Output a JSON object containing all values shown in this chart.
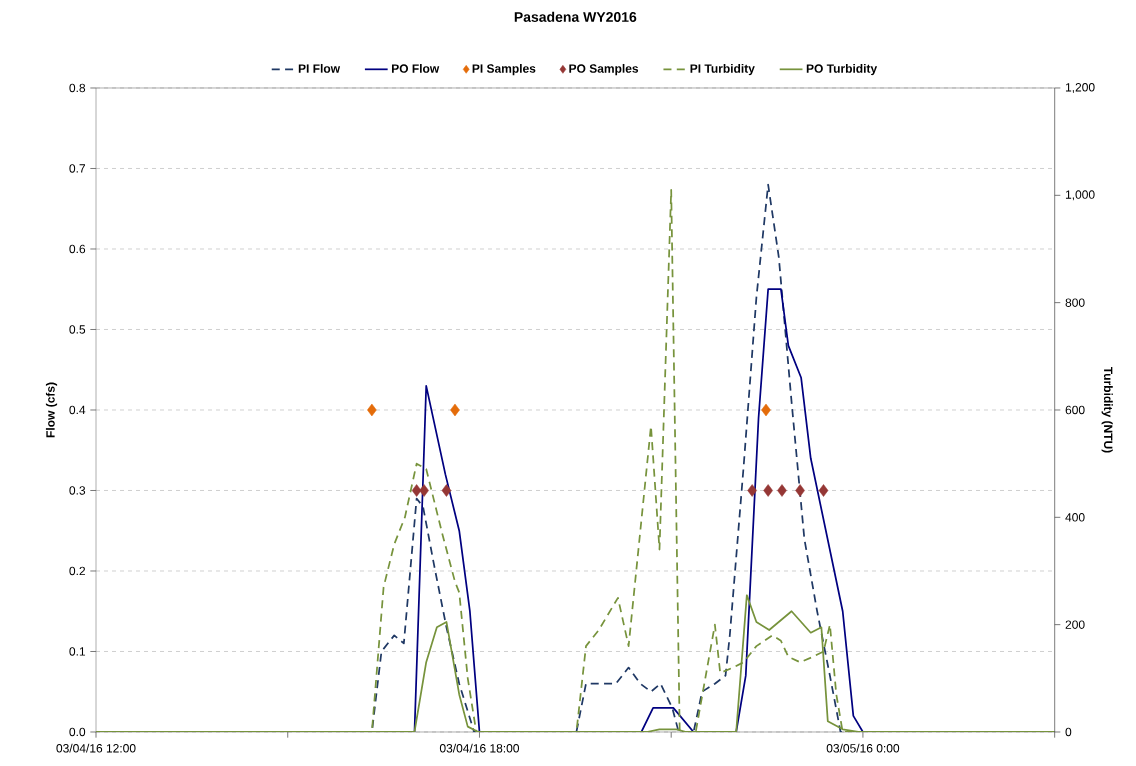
{
  "chart_data": {
    "type": "line",
    "title": "Pasadena WY2016",
    "ylabel": "Flow (cfs)",
    "y2label": "Turbidity (NTU)",
    "xlim": [
      "2016-03-04T12:00",
      "2016-03-05T03:00"
    ],
    "xticks": [
      {
        "value": "2016-03-04T12:00",
        "label": "03/04/16 12:00"
      },
      {
        "value": "2016-03-04T15:00",
        "label": null
      },
      {
        "value": "2016-03-04T18:00",
        "label": "03/04/16 18:00"
      },
      {
        "value": "2016-03-04T21:00",
        "label": null
      },
      {
        "value": "2016-03-05T00:00",
        "label": "03/05/16 0:00"
      },
      {
        "value": "2016-03-05T03:00",
        "label": null
      }
    ],
    "ylim": [
      0,
      0.8
    ],
    "yticks": [
      {
        "value": 0,
        "label": "0.0"
      },
      0.1,
      0.2,
      0.3,
      0.4,
      0.5,
      0.6,
      0.7,
      0.8
    ],
    "y2lim": [
      0,
      1200
    ],
    "y2ticks": [
      0,
      200,
      400,
      600,
      800,
      {
        "value": 1000,
        "label": "1,000"
      },
      {
        "value": 1200,
        "label": "1,200"
      }
    ],
    "grid": "y",
    "legend": "top",
    "series": [
      {
        "name": "PI Flow",
        "line_style": "dashed",
        "color": "#1f3864",
        "x": [
          "2016-03-04T12:00",
          "2016-03-04T16:19",
          "2016-03-04T16:28",
          "2016-03-04T16:40",
          "2016-03-04T16:49",
          "2016-03-04T17:01",
          "2016-03-04T17:07",
          "2016-03-04T17:17",
          "2016-03-04T17:29",
          "2016-03-04T17:41",
          "2016-03-04T17:55",
          "2016-03-04T19:31",
          "2016-03-04T19:40",
          "2016-03-04T19:58",
          "2016-03-04T20:08",
          "2016-03-04T20:20",
          "2016-03-04T20:31",
          "2016-03-04T20:41",
          "2016-03-04T20:50",
          "2016-03-04T21:01",
          "2016-03-04T21:07",
          "2016-03-04T21:21",
          "2016-03-04T21:29",
          "2016-03-04T21:41",
          "2016-03-04T21:51",
          "2016-03-04T21:55",
          "2016-03-04T22:08",
          "2016-03-04T22:20",
          "2016-03-04T22:31",
          "2016-03-04T22:41",
          "2016-03-04T22:53",
          "2016-03-04T23:05",
          "2016-03-04T23:17",
          "2016-03-04T23:29",
          "2016-03-04T23:39",
          "2016-03-05T03:00"
        ],
        "values": [
          0,
          0,
          0.1,
          0.12,
          0.11,
          0.29,
          0.28,
          0.21,
          0.13,
          0.06,
          0,
          0,
          0.06,
          0.06,
          0.06,
          0.08,
          0.06,
          0.05,
          0.06,
          0.03,
          0,
          0,
          0.05,
          0.06,
          0.07,
          0.12,
          0.33,
          0.54,
          0.68,
          0.59,
          0.41,
          0.24,
          0.15,
          0.07,
          0,
          0
        ]
      },
      {
        "name": "PO Flow",
        "line_style": "solid",
        "color": "#000080",
        "x": [
          "2016-03-04T12:00",
          "2016-03-04T16:59",
          "2016-03-04T17:10",
          "2016-03-04T17:28",
          "2016-03-04T17:41",
          "2016-03-04T17:51",
          "2016-03-04T18:00",
          "2016-03-04T20:32",
          "2016-03-04T20:43",
          "2016-03-04T20:53",
          "2016-03-04T21:02",
          "2016-03-04T21:21",
          "2016-03-04T22:01",
          "2016-03-04T22:10",
          "2016-03-04T22:22",
          "2016-03-04T22:31",
          "2016-03-04T22:43",
          "2016-03-04T22:50",
          "2016-03-04T23:02",
          "2016-03-04T23:11",
          "2016-03-04T23:41",
          "2016-03-04T23:51",
          "2016-03-05T00:00",
          "2016-03-05T03:00"
        ],
        "values": [
          0,
          0,
          0.43,
          0.32,
          0.25,
          0.15,
          0,
          0,
          0.03,
          0.03,
          0.03,
          0,
          0,
          0.07,
          0.39,
          0.55,
          0.55,
          0.48,
          0.44,
          0.34,
          0.15,
          0.02,
          0,
          0
        ]
      },
      {
        "name": "PI Samples",
        "type": "scatter",
        "marker": "diamond",
        "color": "#e46c0a",
        "x": [
          "2016-03-04T16:19",
          "2016-03-04T17:37",
          "2016-03-04T22:29"
        ],
        "values": [
          0.4,
          0.4,
          0.4
        ]
      },
      {
        "name": "PO Samples",
        "type": "scatter",
        "marker": "diamond",
        "color": "#953735",
        "x": [
          "2016-03-04T17:01",
          "2016-03-04T17:08",
          "2016-03-04T17:29",
          "2016-03-04T22:16",
          "2016-03-04T22:31",
          "2016-03-04T22:44",
          "2016-03-04T23:01",
          "2016-03-04T23:23"
        ],
        "values": [
          0.3,
          0.3,
          0.3,
          0.3,
          0.3,
          0.3,
          0.3,
          0.3
        ]
      },
      {
        "name": "PI Turbidity",
        "line_style": "dashed",
        "axis": "y2",
        "color": "#77933c",
        "x": [
          "2016-03-04T12:00",
          "2016-03-04T16:19",
          "2016-03-04T16:30",
          "2016-03-04T16:40",
          "2016-03-04T16:50",
          "2016-03-04T17:01",
          "2016-03-04T17:10",
          "2016-03-04T17:25",
          "2016-03-04T17:37",
          "2016-03-04T17:41",
          "2016-03-04T17:49",
          "2016-03-04T17:57",
          "2016-03-04T19:31",
          "2016-03-04T19:40",
          "2016-03-04T19:52",
          "2016-03-04T20:10",
          "2016-03-04T20:20",
          "2016-03-04T20:41",
          "2016-03-04T20:49",
          "2016-03-04T21:00",
          "2016-03-04T21:08",
          "2016-03-04T21:23",
          "2016-03-04T21:41",
          "2016-03-04T21:46",
          "2016-03-04T21:58",
          "2016-03-04T22:08",
          "2016-03-04T22:20",
          "2016-03-04T22:35",
          "2016-03-04T22:43",
          "2016-03-04T22:50",
          "2016-03-04T23:01",
          "2016-03-04T23:13",
          "2016-03-04T23:23",
          "2016-03-04T23:29",
          "2016-03-04T23:35",
          "2016-03-04T23:41",
          "2016-03-05T03:00"
        ],
        "values": [
          0,
          0,
          270,
          350,
          400,
          500,
          490,
          370,
          280,
          260,
          100,
          0,
          0,
          160,
          190,
          250,
          160,
          570,
          340,
          1010,
          0,
          0,
          200,
          110,
          120,
          130,
          160,
          180,
          170,
          140,
          130,
          140,
          150,
          200,
          70,
          0,
          0
        ]
      },
      {
        "name": "PO Turbidity",
        "line_style": "solid",
        "axis": "y2",
        "color": "#77933c",
        "x": [
          "2016-03-04T12:00",
          "2016-03-04T16:59",
          "2016-03-04T17:10",
          "2016-03-04T17:20",
          "2016-03-04T17:29",
          "2016-03-04T17:41",
          "2016-03-04T17:49",
          "2016-03-04T17:59",
          "2016-03-04T20:37",
          "2016-03-04T20:49",
          "2016-03-04T21:05",
          "2016-03-04T21:14",
          "2016-03-04T22:01",
          "2016-03-04T22:11",
          "2016-03-04T22:20",
          "2016-03-04T22:32",
          "2016-03-04T22:53",
          "2016-03-04T23:11",
          "2016-03-04T23:21",
          "2016-03-04T23:27",
          "2016-03-04T23:41",
          "2016-03-04T23:57",
          "2016-03-05T03:00"
        ],
        "values": [
          0,
          0,
          130,
          195,
          205,
          70,
          10,
          0,
          0,
          5,
          5,
          0,
          0,
          255,
          205,
          190,
          225,
          185,
          195,
          20,
          5,
          0,
          0
        ]
      }
    ]
  }
}
